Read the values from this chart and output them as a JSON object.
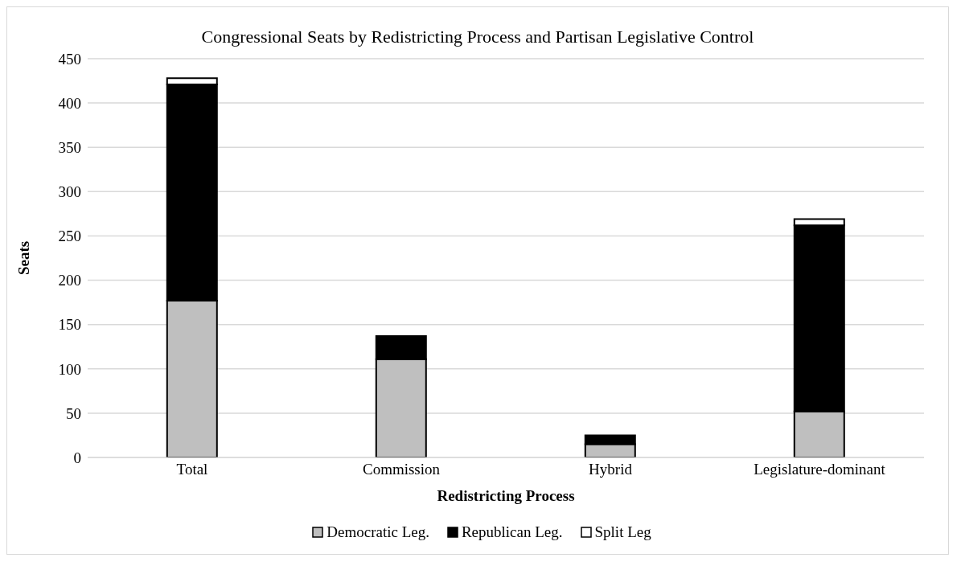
{
  "chart_data": {
    "type": "bar",
    "title": "Congressional Seats by Redistricting Process and Partisan Legislative Control",
    "xlabel": "Redistricting Process",
    "ylabel": "Seats",
    "categories": [
      "Total",
      "Commission",
      "Hybrid",
      "Legislature-dominant"
    ],
    "stacked": true,
    "ylim": [
      0,
      450
    ],
    "yticks": [
      0,
      50,
      100,
      150,
      200,
      250,
      300,
      350,
      400,
      450
    ],
    "grid": "y",
    "legend": "bottom",
    "series": [
      {
        "name": "Democratic Leg.",
        "color": "#bfbfbf",
        "values": [
          177,
          111,
          15,
          52
        ]
      },
      {
        "name": "Republican Leg.",
        "color": "#000000",
        "values": [
          244,
          26,
          10,
          210
        ]
      },
      {
        "name": "Split Leg",
        "color": "#ffffff",
        "values": [
          7,
          0,
          0,
          7
        ]
      }
    ]
  }
}
